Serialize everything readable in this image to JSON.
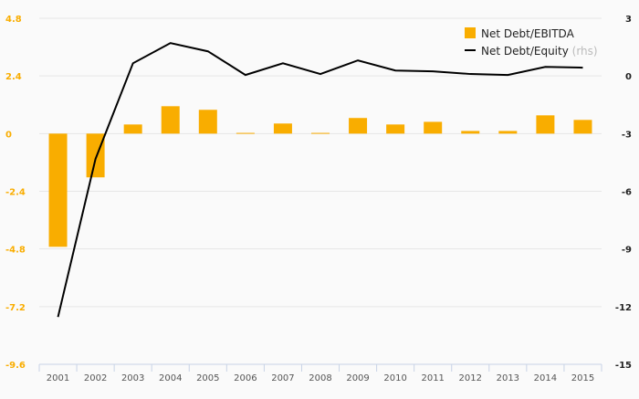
{
  "chart_data": {
    "type": "bar+line",
    "categories": [
      "2001",
      "2002",
      "2003",
      "2004",
      "2005",
      "2006",
      "2007",
      "2008",
      "2009",
      "2010",
      "2011",
      "2012",
      "2013",
      "2014",
      "2015"
    ],
    "series": [
      {
        "name": "Net Debt/EBITDA",
        "type": "bar",
        "axis": "left",
        "color": "#f9ad00",
        "values": [
          -4.71,
          -1.82,
          0.38,
          1.14,
          0.99,
          0.03,
          0.42,
          0.03,
          0.65,
          0.38,
          0.49,
          0.11,
          0.11,
          0.76,
          0.57
        ]
      },
      {
        "name": "Net Debt/Equity",
        "suffix": "(rhs)",
        "type": "line",
        "axis": "right",
        "color": "#000000",
        "values": [
          -12.54,
          -4.32,
          0.66,
          1.71,
          1.28,
          0.05,
          0.66,
          0.1,
          0.81,
          0.28,
          0.24,
          0.1,
          0.05,
          0.47,
          0.43
        ]
      }
    ],
    "left_axis": {
      "ylim": [
        -9.6,
        4.8
      ],
      "ticks": [
        "4.8",
        "2.4",
        "0",
        "-2.4",
        "-4.8",
        "-7.2",
        "-9.6"
      ],
      "tick_values": [
        4.8,
        2.4,
        0,
        -2.4,
        -4.8,
        -7.2,
        -9.6
      ],
      "color": "#f9ad00"
    },
    "right_axis": {
      "ylim": [
        -15,
        3
      ],
      "ticks": [
        "3",
        "0",
        "-3",
        "-6",
        "-9",
        "-12",
        "-15"
      ],
      "tick_values": [
        3,
        0,
        -3,
        -6,
        -9,
        -12,
        -15
      ]
    },
    "grid": true,
    "legend": "top-right"
  }
}
